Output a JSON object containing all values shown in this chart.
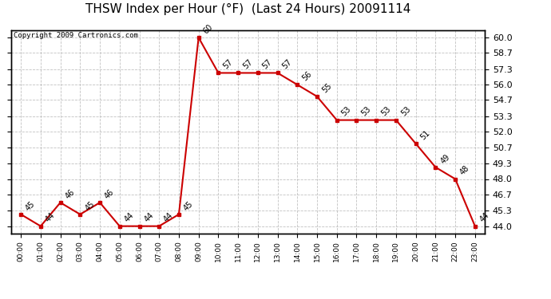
{
  "title": "THSW Index per Hour (°F)  (Last 24 Hours) 20091114",
  "copyright": "Copyright 2009 Cartronics.com",
  "hours": [
    "00:00",
    "01:00",
    "02:00",
    "03:00",
    "04:00",
    "05:00",
    "06:00",
    "07:00",
    "08:00",
    "09:00",
    "10:00",
    "11:00",
    "12:00",
    "13:00",
    "14:00",
    "15:00",
    "16:00",
    "17:00",
    "18:00",
    "19:00",
    "20:00",
    "21:00",
    "22:00",
    "23:00"
  ],
  "values": [
    45,
    44,
    46,
    45,
    46,
    44,
    44,
    44,
    45,
    60,
    57,
    57,
    57,
    57,
    56,
    55,
    53,
    53,
    53,
    53,
    51,
    49,
    48,
    44
  ],
  "line_color": "#cc0000",
  "marker_color": "#cc0000",
  "bg_color": "#ffffff",
  "grid_color": "#bbbbbb",
  "ylim_min": 43.4,
  "ylim_max": 60.65,
  "yticks": [
    44.0,
    45.3,
    46.7,
    48.0,
    49.3,
    50.7,
    52.0,
    53.3,
    54.7,
    56.0,
    57.3,
    58.7,
    60.0
  ],
  "title_fontsize": 11,
  "label_fontsize": 7,
  "copyright_fontsize": 6.5
}
